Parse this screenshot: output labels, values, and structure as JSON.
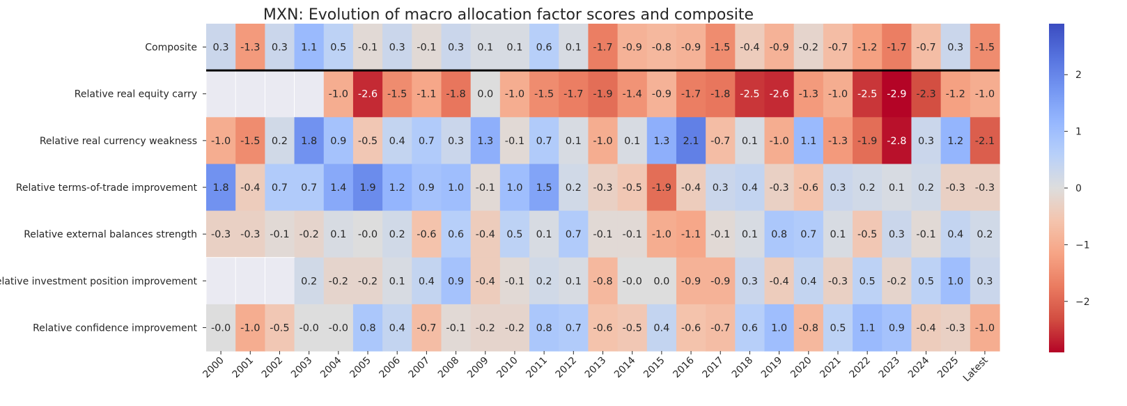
{
  "chart_data": {
    "type": "heatmap",
    "title": "MXN: Evolution of macro allocation factor scores and composite",
    "xlabel": "",
    "ylabel": "",
    "columns": [
      "2000",
      "2001",
      "2002",
      "2003",
      "2004",
      "2005",
      "2006",
      "2007",
      "2008",
      "2009",
      "2010",
      "2011",
      "2012",
      "2013",
      "2014",
      "2015",
      "2016",
      "2017",
      "2018",
      "2019",
      "2020",
      "2021",
      "2022",
      "2023",
      "2024",
      "2025",
      "Latest"
    ],
    "rows": [
      {
        "label": "Composite",
        "values": [
          0.3,
          -1.3,
          0.3,
          1.1,
          0.5,
          -0.1,
          0.3,
          -0.1,
          0.3,
          0.1,
          0.1,
          0.6,
          0.1,
          -1.7,
          -0.9,
          -0.8,
          -0.9,
          -1.5,
          -0.4,
          -0.9,
          -0.2,
          -0.7,
          -1.2,
          -1.7,
          -0.7,
          0.3,
          -1.5
        ]
      },
      {
        "label": "Relative real equity carry",
        "values": [
          null,
          null,
          null,
          null,
          -1.0,
          -2.6,
          -1.5,
          -1.1,
          -1.8,
          0.0,
          -1.0,
          -1.5,
          -1.7,
          -1.9,
          -1.4,
          -0.9,
          -1.7,
          -1.8,
          -2.5,
          -2.6,
          -1.3,
          -1.0,
          -2.5,
          -2.9,
          -2.3,
          -1.2,
          -1.0
        ]
      },
      {
        "label": "Relative real currency weakness",
        "values": [
          -1.0,
          -1.5,
          0.2,
          1.8,
          0.9,
          -0.5,
          0.4,
          0.7,
          0.3,
          1.3,
          -0.1,
          0.7,
          0.1,
          -1.0,
          0.1,
          1.3,
          2.1,
          -0.7,
          0.1,
          -1.0,
          1.1,
          -1.3,
          -1.9,
          -2.8,
          0.3,
          1.2,
          -2.1
        ]
      },
      {
        "label": "Relative terms-of-trade improvement",
        "values": [
          1.8,
          -0.4,
          0.7,
          0.7,
          1.4,
          1.9,
          1.2,
          0.9,
          1.0,
          -0.1,
          1.0,
          1.5,
          0.2,
          -0.3,
          -0.5,
          -1.9,
          -0.4,
          0.3,
          0.4,
          -0.3,
          -0.6,
          0.3,
          0.2,
          0.1,
          0.2,
          -0.3,
          -0.3
        ]
      },
      {
        "label": "Relative external balances strength",
        "values": [
          -0.3,
          -0.3,
          -0.1,
          -0.2,
          0.1,
          -0.0,
          0.2,
          -0.6,
          0.6,
          -0.4,
          0.5,
          0.1,
          0.7,
          -0.1,
          -0.1,
          -1.0,
          -1.1,
          -0.1,
          0.1,
          0.8,
          0.7,
          0.1,
          -0.5,
          0.3,
          -0.1,
          0.4,
          0.2
        ]
      },
      {
        "label": "Relative investment position improvement",
        "values": [
          null,
          null,
          null,
          0.2,
          -0.2,
          -0.2,
          0.1,
          0.4,
          0.9,
          -0.4,
          -0.1,
          0.2,
          0.1,
          -0.8,
          -0.0,
          0.0,
          -0.9,
          -0.9,
          0.3,
          -0.4,
          0.4,
          -0.3,
          0.5,
          -0.2,
          0.5,
          1.0,
          0.3
        ]
      },
      {
        "label": "Relative confidence improvement",
        "values": [
          -0.0,
          -1.0,
          -0.5,
          -0.0,
          -0.0,
          0.8,
          0.4,
          -0.7,
          -0.1,
          -0.2,
          -0.2,
          0.8,
          0.7,
          -0.6,
          -0.5,
          0.4,
          -0.6,
          -0.7,
          0.6,
          1.0,
          -0.8,
          0.5,
          1.1,
          0.9,
          -0.4,
          -0.3,
          -1.0
        ]
      }
    ],
    "colormap": "coolwarm_r",
    "vmin": -2.9,
    "vmax": 2.9,
    "missing_color": "#eaeaf2",
    "separator_after_row": 0,
    "colorbar": {
      "ticks": [
        2,
        1,
        0,
        -1,
        -2
      ],
      "tick_labels": [
        "2",
        "1",
        "0",
        "−1",
        "−2"
      ]
    }
  }
}
